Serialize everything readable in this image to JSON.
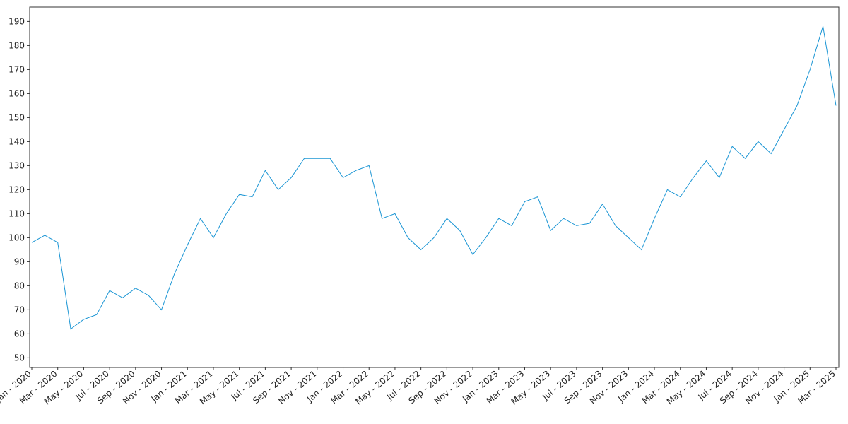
{
  "chart_data": {
    "type": "line",
    "x": [
      "2020-01",
      "2020-02",
      "2020-03",
      "2020-04",
      "2020-05",
      "2020-06",
      "2020-07",
      "2020-08",
      "2020-09",
      "2020-10",
      "2020-11",
      "2020-12",
      "2021-01",
      "2021-02",
      "2021-03",
      "2021-04",
      "2021-05",
      "2021-06",
      "2021-07",
      "2021-08",
      "2021-09",
      "2021-10",
      "2021-11",
      "2021-12",
      "2022-01",
      "2022-02",
      "2022-03",
      "2022-04",
      "2022-05",
      "2022-06",
      "2022-07",
      "2022-08",
      "2022-09",
      "2022-10",
      "2022-11",
      "2022-12",
      "2023-01",
      "2023-02",
      "2023-03",
      "2023-04",
      "2023-05",
      "2023-06",
      "2023-07",
      "2023-08",
      "2023-09",
      "2023-10",
      "2023-11",
      "2023-12",
      "2024-01",
      "2024-02",
      "2024-03",
      "2024-04",
      "2024-05",
      "2024-06",
      "2024-07",
      "2024-08",
      "2024-09",
      "2024-10",
      "2024-11",
      "2024-12",
      "2025-01",
      "2025-02",
      "2025-03"
    ],
    "series": [
      {
        "color": "#1a95d4",
        "values": [
          98,
          101,
          98,
          62,
          66,
          68,
          78,
          75,
          79,
          76,
          70,
          85,
          97,
          108,
          100,
          110,
          118,
          117,
          128,
          120,
          125,
          133,
          133,
          133,
          125,
          128,
          130,
          108,
          110,
          100,
          95,
          100,
          108,
          103,
          93,
          100,
          108,
          105,
          115,
          117,
          103,
          108,
          105,
          106,
          114,
          105,
          100,
          95,
          108,
          120,
          117,
          125,
          132,
          125,
          138,
          133,
          140,
          135,
          145,
          155,
          170,
          188,
          155
        ]
      }
    ],
    "xlim": [
      "2020-01",
      "2025-03"
    ],
    "xticks": [
      {
        "value": "2020-01",
        "label": "Jan - 2020"
      },
      {
        "value": "2020-03",
        "label": "Mar - 2020"
      },
      {
        "value": "2020-05",
        "label": "May - 2020"
      },
      {
        "value": "2020-07",
        "label": "Jul - 2020"
      },
      {
        "value": "2020-09",
        "label": "Sep - 2020"
      },
      {
        "value": "2020-11",
        "label": "Nov - 2020"
      },
      {
        "value": "2021-01",
        "label": "Jan - 2021"
      },
      {
        "value": "2021-03",
        "label": "Mar - 2021"
      },
      {
        "value": "2021-05",
        "label": "May - 2021"
      },
      {
        "value": "2021-07",
        "label": "Jul - 2021"
      },
      {
        "value": "2021-09",
        "label": "Sep - 2021"
      },
      {
        "value": "2021-11",
        "label": "Nov - 2021"
      },
      {
        "value": "2022-01",
        "label": "Jan - 2022"
      },
      {
        "value": "2022-03",
        "label": "Mar - 2022"
      },
      {
        "value": "2022-05",
        "label": "May - 2022"
      },
      {
        "value": "2022-07",
        "label": "Jul - 2022"
      },
      {
        "value": "2022-09",
        "label": "Sep - 2022"
      },
      {
        "value": "2022-11",
        "label": "Nov - 2022"
      },
      {
        "value": "2023-01",
        "label": "Jan - 2023"
      },
      {
        "value": "2023-03",
        "label": "Mar - 2023"
      },
      {
        "value": "2023-05",
        "label": "May - 2023"
      },
      {
        "value": "2023-07",
        "label": "Jul - 2023"
      },
      {
        "value": "2023-09",
        "label": "Sep - 2023"
      },
      {
        "value": "2023-11",
        "label": "Nov - 2023"
      },
      {
        "value": "2024-01",
        "label": "Jan - 2024"
      },
      {
        "value": "2024-03",
        "label": "Mar - 2024"
      },
      {
        "value": "2024-05",
        "label": "May - 2024"
      },
      {
        "value": "2024-07",
        "label": "Jul - 2024"
      },
      {
        "value": "2024-09",
        "label": "Sep - 2024"
      },
      {
        "value": "2024-11",
        "label": "Nov - 2024"
      },
      {
        "value": "2025-01",
        "label": "Jan - 2025"
      },
      {
        "value": "2025-03",
        "label": "Mar - 2025"
      }
    ],
    "ylim": [
      46,
      196
    ],
    "yticks": [
      50,
      60,
      70,
      80,
      90,
      100,
      110,
      120,
      130,
      140,
      150,
      160,
      170,
      180,
      190
    ]
  }
}
